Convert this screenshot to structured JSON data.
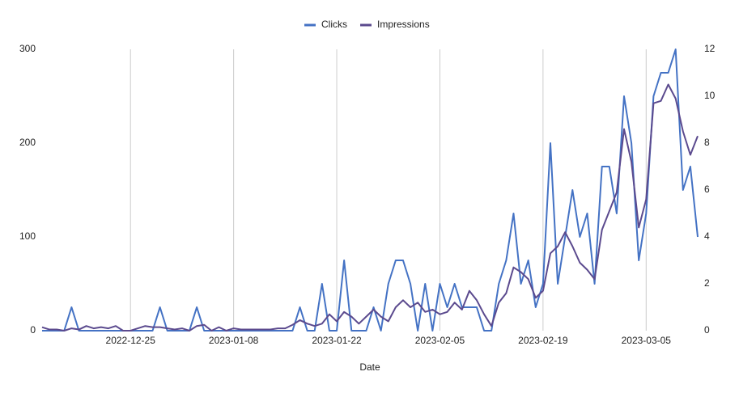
{
  "chart_data": {
    "type": "line",
    "x_label": "Date",
    "x": [
      "2022-12-13",
      "2022-12-14",
      "2022-12-15",
      "2022-12-16",
      "2022-12-17",
      "2022-12-18",
      "2022-12-19",
      "2022-12-20",
      "2022-12-21",
      "2022-12-22",
      "2022-12-23",
      "2022-12-24",
      "2022-12-25",
      "2022-12-26",
      "2022-12-27",
      "2022-12-28",
      "2022-12-29",
      "2022-12-30",
      "2022-12-31",
      "2023-01-01",
      "2023-01-02",
      "2023-01-03",
      "2023-01-04",
      "2023-01-05",
      "2023-01-06",
      "2023-01-07",
      "2023-01-08",
      "2023-01-09",
      "2023-01-10",
      "2023-01-11",
      "2023-01-12",
      "2023-01-13",
      "2023-01-14",
      "2023-01-15",
      "2023-01-16",
      "2023-01-17",
      "2023-01-18",
      "2023-01-19",
      "2023-01-20",
      "2023-01-21",
      "2023-01-22",
      "2023-01-23",
      "2023-01-24",
      "2023-01-25",
      "2023-01-26",
      "2023-01-27",
      "2023-01-28",
      "2023-01-29",
      "2023-01-30",
      "2023-01-31",
      "2023-02-01",
      "2023-02-02",
      "2023-02-03",
      "2023-02-04",
      "2023-02-05",
      "2023-02-06",
      "2023-02-07",
      "2023-02-08",
      "2023-02-09",
      "2023-02-10",
      "2023-02-11",
      "2023-02-12",
      "2023-02-13",
      "2023-02-14",
      "2023-02-15",
      "2023-02-16",
      "2023-02-17",
      "2023-02-18",
      "2023-02-19",
      "2023-02-20",
      "2023-02-21",
      "2023-02-22",
      "2023-02-23",
      "2023-02-24",
      "2023-02-25",
      "2023-02-26",
      "2023-02-27",
      "2023-02-28",
      "2023-03-01",
      "2023-03-02",
      "2023-03-03",
      "2023-03-04",
      "2023-03-05",
      "2023-03-06",
      "2023-03-07",
      "2023-03-08",
      "2023-03-09",
      "2023-03-10",
      "2023-03-11",
      "2023-03-12"
    ],
    "series": [
      {
        "name": "Clicks",
        "color": "#4472c4",
        "values": [
          0,
          0,
          0,
          0,
          25,
          0,
          0,
          0,
          0,
          0,
          0,
          0,
          0,
          0,
          0,
          0,
          25,
          0,
          0,
          0,
          0,
          25,
          0,
          0,
          0,
          0,
          0,
          0,
          0,
          0,
          0,
          0,
          0,
          0,
          0,
          25,
          0,
          0,
          50,
          0,
          0,
          75,
          0,
          0,
          0,
          25,
          0,
          50,
          75,
          75,
          50,
          0,
          50,
          0,
          50,
          25,
          50,
          25,
          25,
          25,
          0,
          0,
          50,
          75,
          125,
          50,
          75,
          25,
          50,
          200,
          50,
          100,
          150,
          100,
          125,
          50,
          175,
          175,
          125,
          250,
          200,
          75,
          125,
          250,
          275,
          275,
          300,
          150,
          175,
          100
        ]
      },
      {
        "name": "Impressions",
        "color": "#5b4a8e",
        "axis": "y2",
        "values": [
          0.15,
          0.05,
          0.05,
          0,
          0.1,
          0.05,
          0.2,
          0.1,
          0.15,
          0.1,
          0.2,
          0,
          0,
          0.1,
          0.2,
          0.15,
          0.15,
          0.1,
          0.05,
          0.1,
          0,
          0.2,
          0.25,
          0,
          0.15,
          0,
          0.1,
          0.05,
          0.05,
          0.05,
          0.05,
          0.05,
          0.1,
          0.1,
          0.25,
          0.45,
          0.3,
          0.2,
          0.3,
          0.7,
          0.4,
          0.8,
          0.6,
          0.3,
          0.6,
          0.9,
          0.6,
          0.4,
          1.0,
          1.3,
          1.0,
          1.2,
          0.8,
          0.9,
          0.7,
          0.8,
          1.2,
          0.9,
          1.7,
          1.3,
          0.7,
          0.2,
          1.2,
          1.6,
          2.7,
          2.5,
          2.2,
          1.4,
          1.7,
          3.3,
          3.6,
          4.2,
          3.6,
          2.9,
          2.6,
          2.2,
          4.3,
          5.1,
          5.9,
          8.6,
          7.2,
          4.4,
          5.6,
          9.7,
          9.8,
          10.5,
          9.9,
          8.5,
          7.5,
          8.3
        ]
      }
    ],
    "xlim": [
      "2022-12-13",
      "2023-03-12"
    ],
    "xticks": [
      "2022-12-25",
      "2023-01-08",
      "2023-01-22",
      "2023-02-05",
      "2023-02-19",
      "2023-03-05"
    ],
    "ylim": [
      0,
      300
    ],
    "yticks": [
      0,
      100,
      200,
      300
    ],
    "y2lim": [
      0,
      12
    ],
    "y2ticks": [
      0,
      2,
      4,
      6,
      8,
      10,
      12
    ],
    "grid": "x",
    "legend": "top"
  }
}
